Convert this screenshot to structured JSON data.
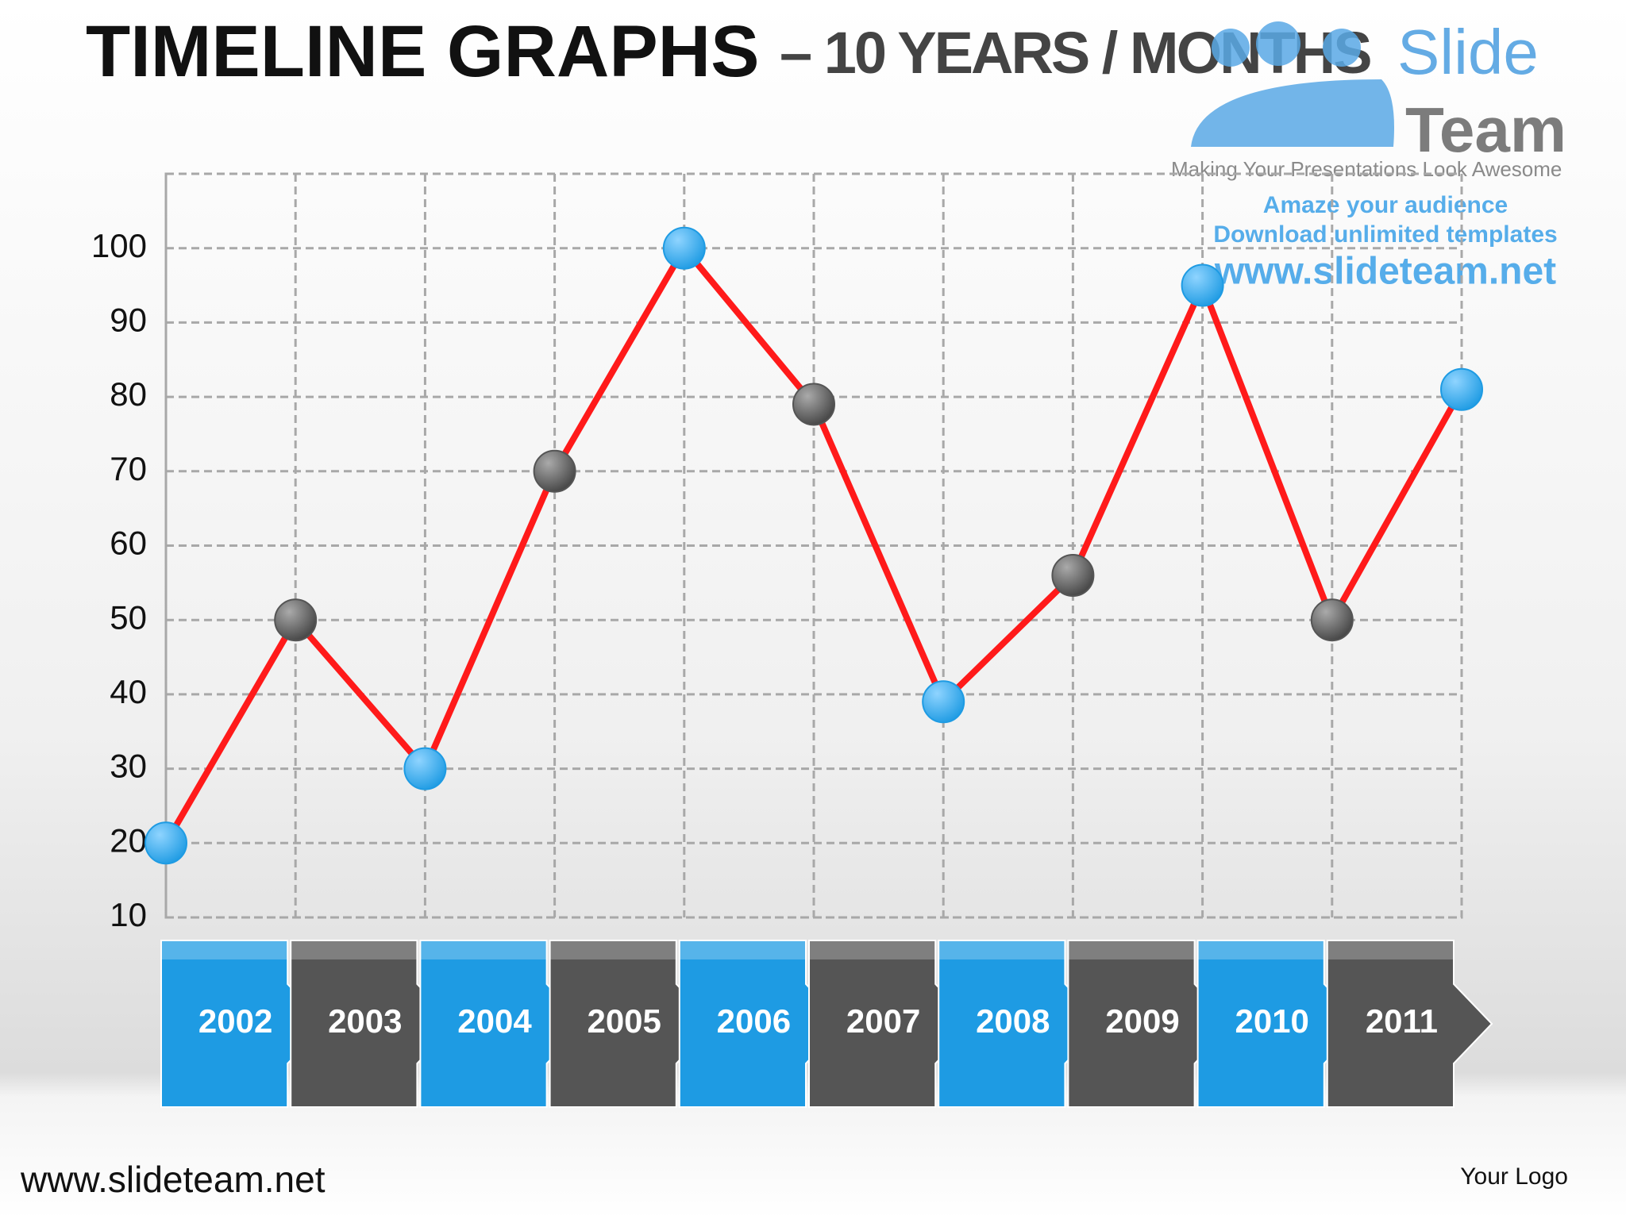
{
  "chart_data": {
    "type": "line",
    "title": "TIMELINE  GRAPHS",
    "subtitle": "– 10 YEARS / MONTHS",
    "categories": [
      "2002",
      "2003",
      "2004",
      "2005",
      "2006",
      "2007",
      "2008",
      "2009",
      "2010",
      "2011",
      null
    ],
    "series": [
      {
        "color": "#ff1a1a",
        "values": [
          20,
          50,
          30,
          70,
          100,
          79,
          39,
          56,
          95,
          50,
          81
        ]
      }
    ],
    "marker_colors": [
      "#1e9be3",
      "#555555"
    ],
    "ylim": [
      10,
      110
    ],
    "yticks": [
      10,
      20,
      30,
      40,
      50,
      60,
      70,
      80,
      90,
      100
    ],
    "grid": true
  },
  "watermark": {
    "brand_1": "Slide",
    "brand_2": "Team",
    "tagline": "Making Your Presentations Look Awesome",
    "line_1": "Amaze your audience",
    "line_2": "Download unlimited templates",
    "url": "www.slideteam.net"
  },
  "footer": {
    "left": "www.slideteam.net",
    "right": "Your Logo"
  }
}
